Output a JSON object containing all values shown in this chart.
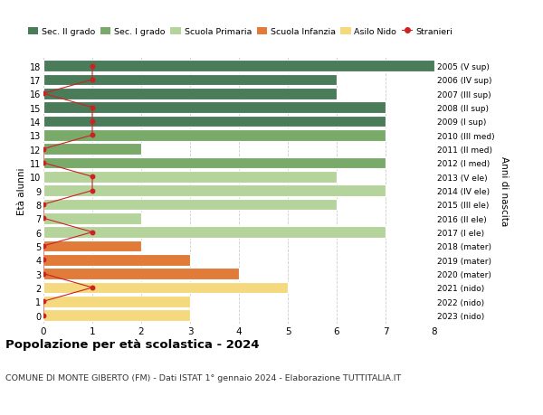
{
  "ages": [
    18,
    17,
    16,
    15,
    14,
    13,
    12,
    11,
    10,
    9,
    8,
    7,
    6,
    5,
    4,
    3,
    2,
    1,
    0
  ],
  "right_labels": [
    "2005 (V sup)",
    "2006 (IV sup)",
    "2007 (III sup)",
    "2008 (II sup)",
    "2009 (I sup)",
    "2010 (III med)",
    "2011 (II med)",
    "2012 (I med)",
    "2013 (V ele)",
    "2014 (IV ele)",
    "2015 (III ele)",
    "2016 (II ele)",
    "2017 (I ele)",
    "2018 (mater)",
    "2019 (mater)",
    "2020 (mater)",
    "2021 (nido)",
    "2022 (nido)",
    "2023 (nido)"
  ],
  "bar_values": [
    8,
    6,
    6,
    7,
    7,
    7,
    2,
    7,
    6,
    7,
    6,
    2,
    7,
    2,
    3,
    4,
    5,
    3,
    3
  ],
  "bar_colors": [
    "#4a7c59",
    "#4a7c59",
    "#4a7c59",
    "#4a7c59",
    "#4a7c59",
    "#7aaa6a",
    "#7aaa6a",
    "#7aaa6a",
    "#b5d49b",
    "#b5d49b",
    "#b5d49b",
    "#b5d49b",
    "#b5d49b",
    "#e07b39",
    "#e07b39",
    "#e07b39",
    "#f5d97e",
    "#f5d97e",
    "#f5d97e"
  ],
  "stranieri_x": [
    1,
    1,
    0,
    1,
    1,
    1,
    0,
    0,
    1,
    1,
    0,
    0,
    1,
    0,
    0,
    0,
    1,
    0,
    0
  ],
  "legend_labels": [
    "Sec. II grado",
    "Sec. I grado",
    "Scuola Primaria",
    "Scuola Infanzia",
    "Asilo Nido",
    "Stranieri"
  ],
  "legend_colors": [
    "#4a7c59",
    "#7aaa6a",
    "#b5d49b",
    "#e07b39",
    "#f5d97e",
    "#cc2222"
  ],
  "title_bold": "Popolazione per età scolastica - 2024",
  "subtitle": "COMUNE DI MONTE GIBERTO (FM) - Dati ISTAT 1° gennaio 2024 - Elaborazione TUTTITALIA.IT",
  "ylabel_left": "Età alunni",
  "ylabel_right": "Anni di nascita",
  "xlim": [
    0,
    8
  ],
  "stranieri_color": "#cc2222",
  "grid_color": "#cccccc"
}
